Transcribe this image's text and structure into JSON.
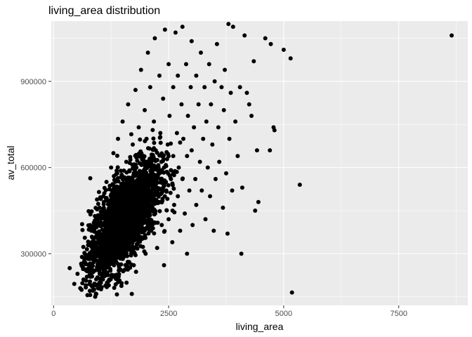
{
  "chart_data": {
    "type": "scatter",
    "title": "living_area  distribution",
    "xlabel": "living_area",
    "ylabel": "av_total",
    "xlim": [
      -50,
      9000
    ],
    "ylim": [
      120000,
      1110000
    ],
    "x_ticks": [
      0,
      2500,
      5000,
      7500
    ],
    "x_tick_labels": [
      "0",
      "2500",
      "5000",
      "7500"
    ],
    "y_ticks": [
      300000,
      600000,
      900000
    ],
    "y_tick_labels": [
      "300000",
      "600000",
      "900000"
    ],
    "grid": true,
    "legend": "none",
    "colors": {
      "panel": "#ebebeb",
      "grid_major": "#ffffff",
      "point": "#000000"
    },
    "points": [
      [
        350,
        250000
      ],
      [
        450,
        195000
      ],
      [
        520,
        230000
      ],
      [
        580,
        180000
      ],
      [
        600,
        265000
      ],
      [
        650,
        210000
      ],
      [
        680,
        300000
      ],
      [
        700,
        190000
      ],
      [
        750,
        330000
      ],
      [
        780,
        260000
      ],
      [
        800,
        220000
      ],
      [
        820,
        380000
      ],
      [
        850,
        290000
      ],
      [
        880,
        175000
      ],
      [
        900,
        340000
      ],
      [
        920,
        420000
      ],
      [
        950,
        250000
      ],
      [
        980,
        310000
      ],
      [
        1000,
        200000
      ],
      [
        1000,
        460000
      ],
      [
        1020,
        360000
      ],
      [
        1050,
        280000
      ],
      [
        1080,
        500000
      ],
      [
        1100,
        330000
      ],
      [
        1100,
        230000
      ],
      [
        1120,
        410000
      ],
      [
        1150,
        550000
      ],
      [
        1180,
        300000
      ],
      [
        1200,
        440000
      ],
      [
        1200,
        190000
      ],
      [
        1220,
        360000
      ],
      [
        1250,
        600000
      ],
      [
        1280,
        270000
      ],
      [
        1300,
        480000
      ],
      [
        1300,
        650000
      ],
      [
        1320,
        330000
      ],
      [
        1350,
        400000
      ],
      [
        1380,
        220000
      ],
      [
        1400,
        520000
      ],
      [
        1400,
        700000
      ],
      [
        1420,
        380000
      ],
      [
        1450,
        460000
      ],
      [
        1480,
        300000
      ],
      [
        1500,
        560000
      ],
      [
        1500,
        760000
      ],
      [
        1520,
        420000
      ],
      [
        1550,
        340000
      ],
      [
        1580,
        620000
      ],
      [
        1600,
        500000
      ],
      [
        1600,
        250000
      ],
      [
        1620,
        820000
      ],
      [
        1650,
        380000
      ],
      [
        1680,
        450000
      ],
      [
        1700,
        560000
      ],
      [
        1700,
        160000
      ],
      [
        1720,
        680000
      ],
      [
        1750,
        320000
      ],
      [
        1780,
        870000
      ],
      [
        1800,
        480000
      ],
      [
        1800,
        600000
      ],
      [
        1820,
        410000
      ],
      [
        1850,
        740000
      ],
      [
        1880,
        350000
      ],
      [
        1900,
        520000
      ],
      [
        1900,
        940000
      ],
      [
        1920,
        640000
      ],
      [
        1950,
        430000
      ],
      [
        1980,
        800000
      ],
      [
        2000,
        560000
      ],
      [
        2000,
        300000
      ],
      [
        2020,
        700000
      ],
      [
        2050,
        1000000
      ],
      [
        2080,
        470000
      ],
      [
        2100,
        620000
      ],
      [
        2100,
        880000
      ],
      [
        2120,
        380000
      ],
      [
        2150,
        540000
      ],
      [
        2180,
        760000
      ],
      [
        2200,
        450000
      ],
      [
        2200,
        1050000
      ],
      [
        2220,
        660000
      ],
      [
        2250,
        320000
      ],
      [
        2280,
        580000
      ],
      [
        2300,
        920000
      ],
      [
        2300,
        480000
      ],
      [
        2320,
        720000
      ],
      [
        2350,
        400000
      ],
      [
        2380,
        840000
      ],
      [
        2400,
        600000
      ],
      [
        2400,
        260000
      ],
      [
        2420,
        1080000
      ],
      [
        2450,
        520000
      ],
      [
        2480,
        680000
      ],
      [
        2500,
        960000
      ],
      [
        2500,
        420000
      ],
      [
        2520,
        780000
      ],
      [
        2550,
        560000
      ],
      [
        2580,
        340000
      ],
      [
        2600,
        880000
      ],
      [
        2600,
        640000
      ],
      [
        2620,
        470000
      ],
      [
        2650,
        1070000
      ],
      [
        2680,
        720000
      ],
      [
        2700,
        500000
      ],
      [
        2700,
        920000
      ],
      [
        2720,
        600000
      ],
      [
        2750,
        380000
      ],
      [
        2780,
        820000
      ],
      [
        2800,
        1090000
      ],
      [
        2800,
        560000
      ],
      [
        2820,
        700000
      ],
      [
        2850,
        440000
      ],
      [
        2880,
        960000
      ],
      [
        2900,
        640000
      ],
      [
        2900,
        300000
      ],
      [
        2920,
        780000
      ],
      [
        2950,
        520000
      ],
      [
        2980,
        880000
      ],
      [
        3000,
        1040000
      ],
      [
        3000,
        660000
      ],
      [
        3020,
        400000
      ],
      [
        3050,
        740000
      ],
      [
        3080,
        560000
      ],
      [
        3100,
        920000
      ],
      [
        3100,
        470000
      ],
      [
        3150,
        820000
      ],
      [
        3180,
        620000
      ],
      [
        3200,
        1000000
      ],
      [
        3220,
        520000
      ],
      [
        3250,
        700000
      ],
      [
        3280,
        880000
      ],
      [
        3300,
        420000
      ],
      [
        3320,
        760000
      ],
      [
        3350,
        600000
      ],
      [
        3380,
        960000
      ],
      [
        3400,
        500000
      ],
      [
        3420,
        820000
      ],
      [
        3450,
        680000
      ],
      [
        3480,
        380000
      ],
      [
        3500,
        900000
      ],
      [
        3520,
        560000
      ],
      [
        3550,
        1030000
      ],
      [
        3580,
        740000
      ],
      [
        3600,
        620000
      ],
      [
        3650,
        880000
      ],
      [
        3680,
        460000
      ],
      [
        3700,
        800000
      ],
      [
        3720,
        940000
      ],
      [
        3750,
        580000
      ],
      [
        3780,
        370000
      ],
      [
        3800,
        1100000
      ],
      [
        3820,
        700000
      ],
      [
        3850,
        860000
      ],
      [
        3880,
        520000
      ],
      [
        3900,
        1090000
      ],
      [
        3950,
        760000
      ],
      [
        4000,
        640000
      ],
      [
        4050,
        880000
      ],
      [
        4080,
        300000
      ],
      [
        4100,
        530000
      ],
      [
        4150,
        1060000
      ],
      [
        4200,
        860000
      ],
      [
        4250,
        820000
      ],
      [
        4300,
        780000
      ],
      [
        4350,
        970000
      ],
      [
        4380,
        450000
      ],
      [
        4420,
        660000
      ],
      [
        4450,
        480000
      ],
      [
        4600,
        1050000
      ],
      [
        4700,
        660000
      ],
      [
        4720,
        1030000
      ],
      [
        4780,
        740000
      ],
      [
        4800,
        730000
      ],
      [
        5000,
        1010000
      ],
      [
        5150,
        980000
      ],
      [
        5180,
        165000
      ],
      [
        5350,
        540000
      ],
      [
        8650,
        1060000
      ]
    ]
  }
}
